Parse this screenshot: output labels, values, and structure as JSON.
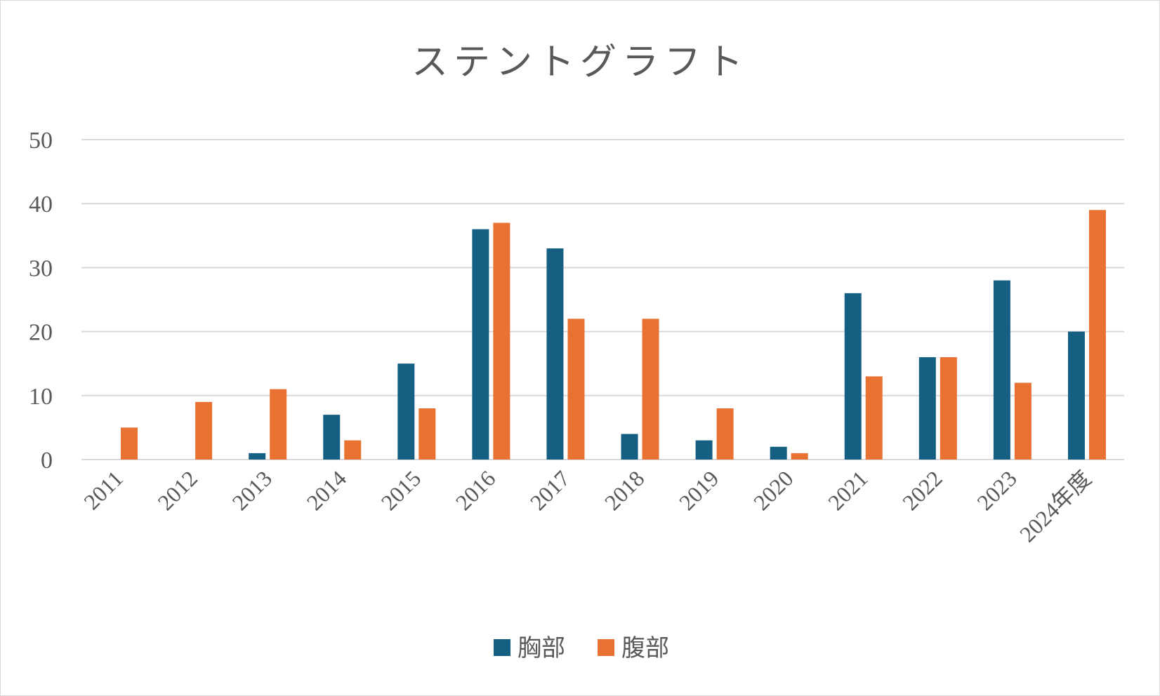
{
  "chart_data": {
    "type": "bar",
    "title": "ステントグラフト",
    "xlabel": "",
    "ylabel": "",
    "ylim": [
      0,
      50
    ],
    "yticks": [
      0,
      10,
      20,
      30,
      40,
      50
    ],
    "grid": true,
    "legend_position": "bottom",
    "categories": [
      "2011",
      "2012",
      "2013",
      "2014",
      "2015",
      "2016",
      "2017",
      "2018",
      "2019",
      "2020",
      "2021",
      "2022",
      "2023",
      "2024年度"
    ],
    "series": [
      {
        "name": "胸部",
        "color": "#156082",
        "values": [
          0,
          0,
          1,
          7,
          15,
          36,
          33,
          4,
          3,
          2,
          26,
          16,
          28,
          20
        ]
      },
      {
        "name": "腹部",
        "color": "#e97132",
        "values": [
          5,
          9,
          11,
          3,
          8,
          37,
          22,
          22,
          8,
          1,
          13,
          16,
          12,
          39
        ]
      }
    ]
  }
}
